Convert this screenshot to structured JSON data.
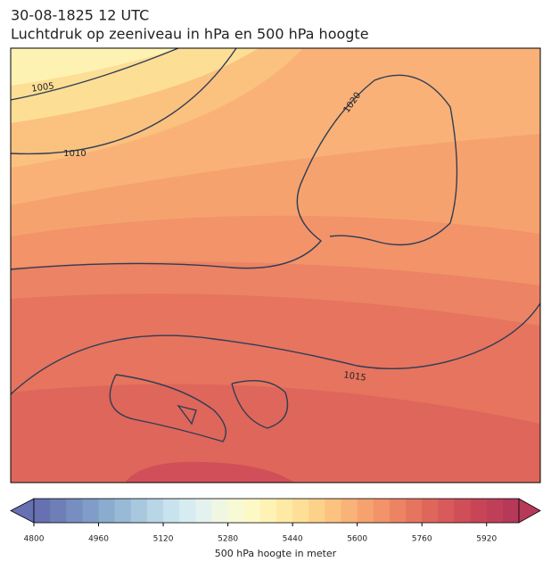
{
  "header": {
    "line1": "30-08-1825 12 UTC",
    "line2": "Luchtdruk op zeeniveau in hPa en 500 hPa hoogte"
  },
  "map": {
    "isobar_labels": [
      "1005",
      "1010",
      "1020",
      "1015"
    ]
  },
  "colorbar": {
    "label": "500 hPa hoogte in meter",
    "lim": [
      4800,
      6000
    ],
    "ticks": [
      4800,
      4960,
      5120,
      5280,
      5440,
      5600,
      5760,
      5920
    ],
    "colors": [
      "#6770b0",
      "#6e7fb8",
      "#768ec0",
      "#7f9dc7",
      "#8aaccf",
      "#98bad6",
      "#a8c8de",
      "#b8d6e6",
      "#c8e3ed",
      "#d7ecf1",
      "#e4f2ef",
      "#eff7e3",
      "#f8fad6",
      "#fdf9c6",
      "#fef2b4",
      "#feeaa5",
      "#fddf97",
      "#fcd18a",
      "#fbc280",
      "#f9b277",
      "#f6a26f",
      "#f29369",
      "#ec8464",
      "#e6755f",
      "#df665b",
      "#d85a5a",
      "#d04e58",
      "#c84557",
      "#c03f58",
      "#b63959"
    ]
  }
}
